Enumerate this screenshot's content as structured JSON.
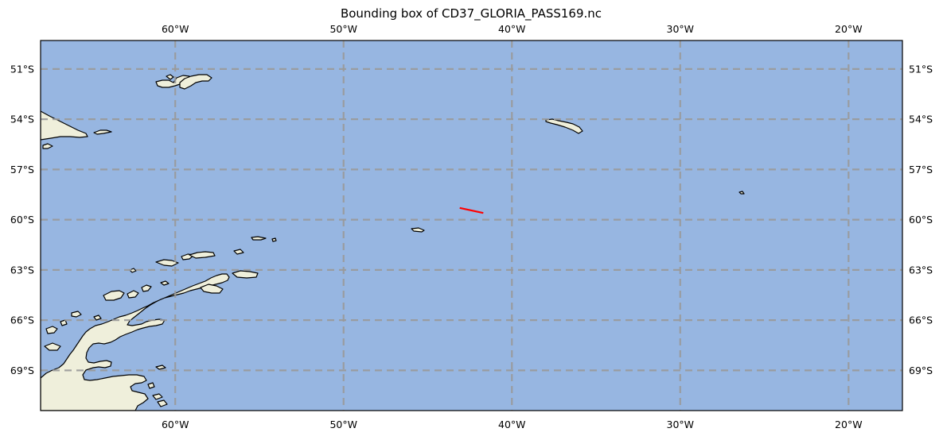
{
  "figure": {
    "title": "Bounding box of CD37_GLORIA_PASS169.nc"
  },
  "map": {
    "projection": "PlateCarree",
    "extent": {
      "lon_min": -68.0,
      "lon_max": -16.8,
      "lat_min": -71.4,
      "lat_max": -49.3
    },
    "ocean_color": "#97b6e1",
    "land_color": "#efefdb",
    "coastline_color": "#000000",
    "gridline_color": "#9a9a9a",
    "grid": true,
    "lon_ticks": [
      {
        "value": -60,
        "label": "60°W"
      },
      {
        "value": -50,
        "label": "50°W"
      },
      {
        "value": -40,
        "label": "40°W"
      },
      {
        "value": -30,
        "label": "30°W"
      },
      {
        "value": -20,
        "label": "20°W"
      }
    ],
    "lat_ticks": [
      {
        "value": -51,
        "label": "51°S"
      },
      {
        "value": -54,
        "label": "54°S"
      },
      {
        "value": -57,
        "label": "57°S"
      },
      {
        "value": -60,
        "label": "60°S"
      },
      {
        "value": -63,
        "label": "63°S"
      },
      {
        "value": -66,
        "label": "66°S"
      },
      {
        "value": -69,
        "label": "69°S"
      }
    ],
    "track": {
      "color": "#ff0000",
      "points": [
        {
          "lon": -43.1,
          "lat": -59.3
        },
        {
          "lon": -41.7,
          "lat": -59.6
        }
      ]
    }
  }
}
